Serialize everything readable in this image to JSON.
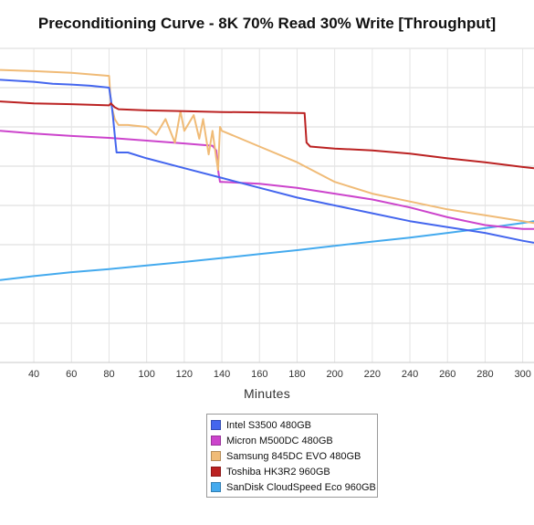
{
  "chart_data": {
    "type": "line",
    "title": "Preconditioning Curve - 8K 70% Read 30% Write [Throughput]",
    "xlabel": "Minutes",
    "ylabel": "",
    "xlim": [
      22,
      306
    ],
    "ylim": [
      0,
      8
    ],
    "xticks": [
      40,
      60,
      80,
      100,
      120,
      140,
      160,
      180,
      200,
      220,
      240,
      260,
      280,
      300
    ],
    "grid": true,
    "legend_position": "bottom-center",
    "series": [
      {
        "name": "Intel S3500 480GB",
        "color": "#4466ee",
        "x": [
          22,
          40,
          50,
          60,
          70,
          80,
          81,
          82,
          83,
          84,
          90,
          100,
          120,
          140,
          160,
          180,
          200,
          220,
          240,
          260,
          280,
          300,
          306
        ],
        "y": [
          7.2,
          7.15,
          7.1,
          7.08,
          7.05,
          7.0,
          6.7,
          6.3,
          5.8,
          5.35,
          5.35,
          5.2,
          4.95,
          4.7,
          4.45,
          4.2,
          4.0,
          3.8,
          3.6,
          3.45,
          3.3,
          3.1,
          3.05
        ]
      },
      {
        "name": "Micron M500DC 480GB",
        "color": "#cc44cc",
        "x": [
          22,
          40,
          60,
          80,
          100,
          120,
          135,
          137,
          138,
          139,
          140,
          160,
          180,
          200,
          220,
          240,
          260,
          280,
          300,
          306
        ],
        "y": [
          5.9,
          5.83,
          5.77,
          5.72,
          5.65,
          5.58,
          5.52,
          5.4,
          4.9,
          4.6,
          4.6,
          4.55,
          4.45,
          4.3,
          4.15,
          3.95,
          3.7,
          3.5,
          3.4,
          3.4
        ]
      },
      {
        "name": "Samsung 845DC EVO 480GB",
        "color": "#f0bb77",
        "x": [
          22,
          40,
          60,
          80,
          81,
          83,
          85,
          90,
          100,
          105,
          110,
          115,
          118,
          120,
          125,
          128,
          130,
          133,
          135,
          137,
          138,
          139,
          140,
          160,
          180,
          200,
          220,
          240,
          260,
          280,
          300,
          306
        ],
        "y": [
          7.45,
          7.42,
          7.38,
          7.3,
          6.6,
          6.2,
          6.05,
          6.05,
          6.0,
          5.8,
          6.2,
          5.6,
          6.4,
          5.9,
          6.3,
          5.7,
          6.2,
          5.3,
          5.9,
          5.2,
          4.9,
          6.0,
          5.9,
          5.5,
          5.1,
          4.6,
          4.3,
          4.1,
          3.9,
          3.75,
          3.6,
          3.55
        ]
      },
      {
        "name": "Toshiba HK3R2 960GB",
        "color": "#bb2222",
        "x": [
          22,
          40,
          60,
          80,
          81,
          83,
          85,
          100,
          120,
          140,
          160,
          184,
          185,
          187,
          200,
          220,
          240,
          260,
          280,
          300,
          306
        ],
        "y": [
          6.65,
          6.6,
          6.58,
          6.55,
          6.6,
          6.5,
          6.45,
          6.42,
          6.4,
          6.38,
          6.37,
          6.35,
          5.6,
          5.5,
          5.45,
          5.4,
          5.32,
          5.2,
          5.1,
          4.98,
          4.95
        ]
      },
      {
        "name": "SanDisk CloudSpeed Eco 960GB",
        "color": "#44aaee",
        "x": [
          22,
          40,
          60,
          80,
          100,
          120,
          140,
          160,
          180,
          200,
          220,
          240,
          260,
          280,
          300,
          306
        ],
        "y": [
          2.1,
          2.2,
          2.3,
          2.38,
          2.47,
          2.56,
          2.66,
          2.76,
          2.86,
          2.97,
          3.08,
          3.18,
          3.3,
          3.42,
          3.55,
          3.6
        ]
      }
    ]
  }
}
